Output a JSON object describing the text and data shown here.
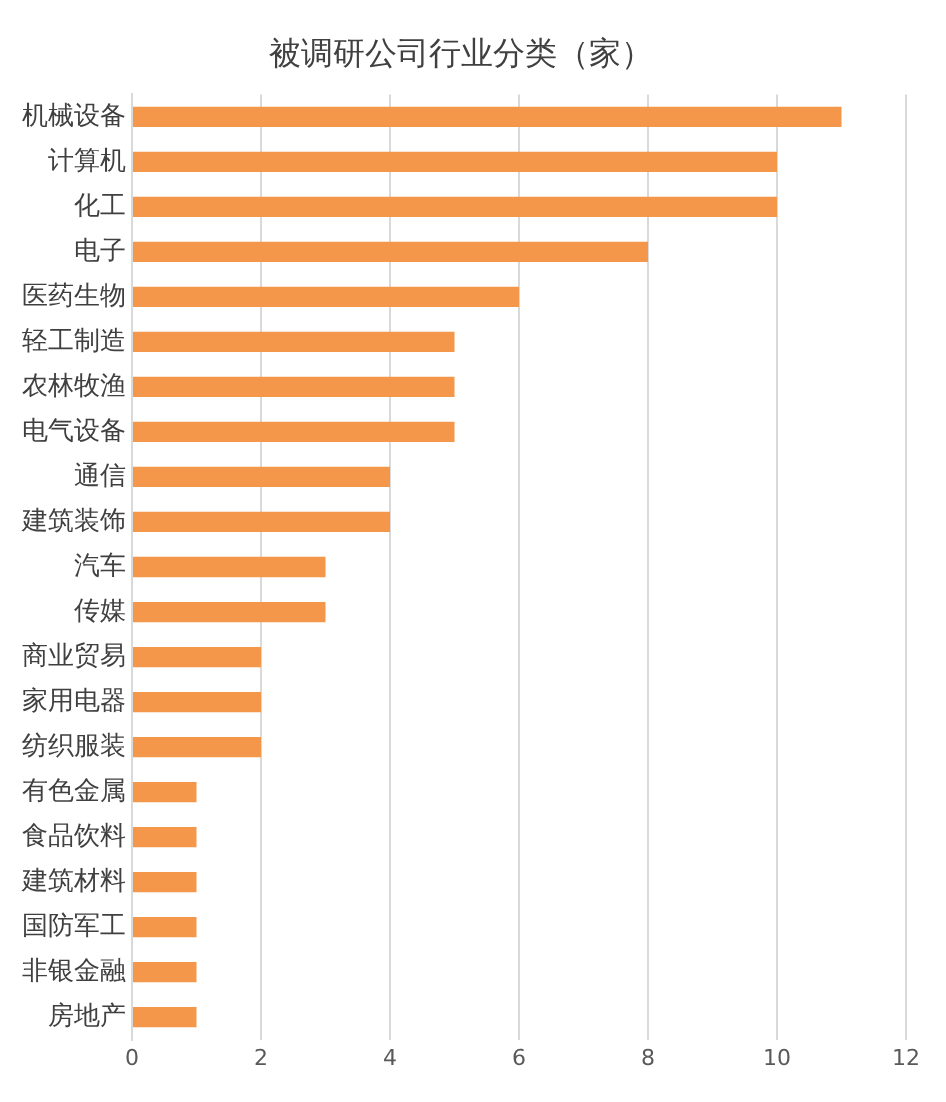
{
  "chart_data": {
    "type": "bar",
    "orientation": "horizontal",
    "title": "被调研公司行业分类（家）",
    "categories": [
      "机械设备",
      "计算机",
      "化工",
      "电子",
      "医药生物",
      "轻工制造",
      "农林牧渔",
      "电气设备",
      "通信",
      "建筑装饰",
      "汽车",
      "传媒",
      "商业贸易",
      "家用电器",
      "纺织服装",
      "有色金属",
      "食品饮料",
      "建筑材料",
      "国防军工",
      "非银金融",
      "房地产"
    ],
    "values": [
      11,
      10,
      10,
      8,
      6,
      5,
      5,
      5,
      4,
      4,
      3,
      3,
      2,
      2,
      2,
      1,
      1,
      1,
      1,
      1,
      1
    ],
    "color": "#f4974a",
    "xlim": [
      0,
      12
    ],
    "xticks": [
      0,
      2,
      4,
      6,
      8,
      10,
      12
    ],
    "grid": "x",
    "legend": false
  }
}
